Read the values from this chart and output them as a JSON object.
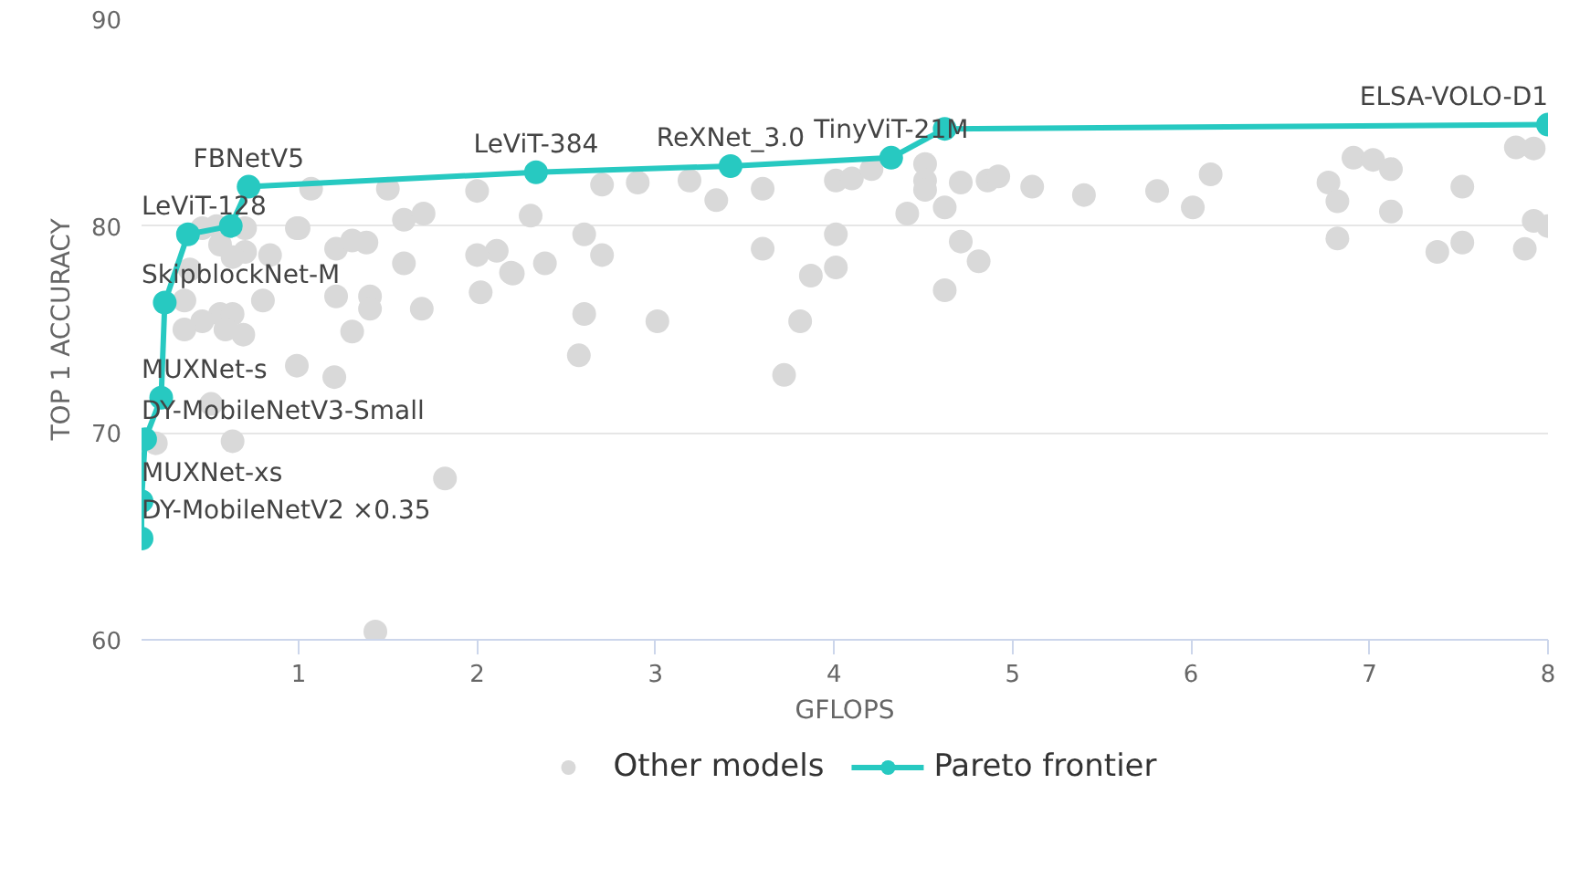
{
  "chart_data": {
    "type": "scatter",
    "xlabel": "GFLOPS",
    "ylabel": "TOP 1 ACCURACY",
    "xlim": [
      0.12,
      8.0
    ],
    "ylim": [
      60,
      90
    ],
    "xticks": [
      1,
      2,
      3,
      4,
      5,
      6,
      7,
      8
    ],
    "yticks": [
      60,
      70,
      80,
      90
    ],
    "grid": "y",
    "legend": "bottom",
    "marker": "circle",
    "series": [
      {
        "name": "Other models",
        "type": "scatter",
        "color": "#d9d9d9",
        "x": [
          1.07,
          1.5,
          1.0,
          1.59,
          1.7,
          2.0,
          2.3,
          2.11,
          2.0,
          2.38,
          2.19,
          2.02,
          1.59,
          1.69,
          1.21,
          1.3,
          1.38,
          1.21,
          1.4,
          1.4,
          1.3,
          1.2,
          0.99,
          0.99,
          0.84,
          0.8,
          0.7,
          0.56,
          0.63,
          0.56,
          0.63,
          0.69,
          0.59,
          0.46,
          0.36,
          0.39,
          0.36,
          0.51,
          0.63,
          0.2,
          1.82,
          1.43,
          0.7,
          0.54,
          0.46,
          2.2,
          2.6,
          2.7,
          2.7,
          2.9,
          3.19,
          3.34,
          3.6,
          3.6,
          4.01,
          4.1,
          4.21,
          4.01,
          4.01,
          3.87,
          3.81,
          3.72,
          2.6,
          2.57,
          3.01,
          4.51,
          4.51,
          4.51,
          4.41,
          4.62,
          4.71,
          4.71,
          4.81,
          4.62,
          4.86,
          4.92,
          5.11,
          5.4,
          5.81,
          6.01,
          6.11,
          6.77,
          6.82,
          6.82,
          6.91,
          7.02,
          7.12,
          7.12,
          7.38,
          7.52,
          7.52,
          7.82,
          7.92,
          7.92,
          8.0,
          7.87
        ],
        "values": [
          81.8,
          81.8,
          79.9,
          80.3,
          80.6,
          81.7,
          80.5,
          78.8,
          78.6,
          78.2,
          77.75,
          76.8,
          78.2,
          76.0,
          78.9,
          79.3,
          79.2,
          76.6,
          76.6,
          76.0,
          74.9,
          72.7,
          73.25,
          79.9,
          78.6,
          76.4,
          78.75,
          79.1,
          78.5,
          75.75,
          75.75,
          74.75,
          75.0,
          75.4,
          75.0,
          77.9,
          76.4,
          71.4,
          69.6,
          69.5,
          67.8,
          60.4,
          79.9,
          80.0,
          79.9,
          77.7,
          79.6,
          78.6,
          82.0,
          82.1,
          82.2,
          81.25,
          81.8,
          78.9,
          82.2,
          82.3,
          82.75,
          79.6,
          78.0,
          77.6,
          75.4,
          72.8,
          75.75,
          73.75,
          75.4,
          83.0,
          82.2,
          81.75,
          80.6,
          80.9,
          82.1,
          79.25,
          78.3,
          76.9,
          82.2,
          82.4,
          81.9,
          81.5,
          81.7,
          80.9,
          82.5,
          82.1,
          81.2,
          79.4,
          83.3,
          83.2,
          82.75,
          80.7,
          78.75,
          81.9,
          79.2,
          83.8,
          83.75,
          80.25,
          80.0,
          78.9
        ]
      },
      {
        "name": "Pareto frontier",
        "type": "line",
        "color": "#27c9c1",
        "x": [
          0.12,
          0.12,
          0.14,
          0.23,
          0.25,
          0.38,
          0.62,
          0.72,
          2.33,
          3.42,
          4.32,
          4.62,
          8.0
        ],
        "values": [
          64.9,
          66.7,
          69.7,
          71.7,
          76.3,
          79.6,
          80.0,
          81.9,
          82.6,
          82.9,
          83.3,
          84.7,
          84.9
        ]
      }
    ],
    "annotations": [
      {
        "text": "DY-MobileNetV2 ×0.35",
        "x": 0.12,
        "y": 64.9
      },
      {
        "text": "MUXNet-xs",
        "x": 0.12,
        "y": 66.7
      },
      {
        "text": "DY-MobileNetV3-Small",
        "x": 0.14,
        "y": 69.7
      },
      {
        "text": "MUXNet-s",
        "x": 0.23,
        "y": 71.7
      },
      {
        "text": "SkipblockNet-M",
        "x": 0.25,
        "y": 76.3
      },
      {
        "text": "LeViT-128",
        "x": 0.38,
        "y": 79.6
      },
      {
        "text": "FBNetV5",
        "x": 0.72,
        "y": 81.9
      },
      {
        "text": "LeViT-384",
        "x": 2.33,
        "y": 82.6
      },
      {
        "text": "ReXNet_3.0",
        "x": 3.42,
        "y": 82.9
      },
      {
        "text": "TinyViT-21M",
        "x": 4.32,
        "y": 83.3
      },
      {
        "text": "ELSA-VOLO-D1",
        "x": 8.0,
        "y": 84.9
      }
    ]
  }
}
